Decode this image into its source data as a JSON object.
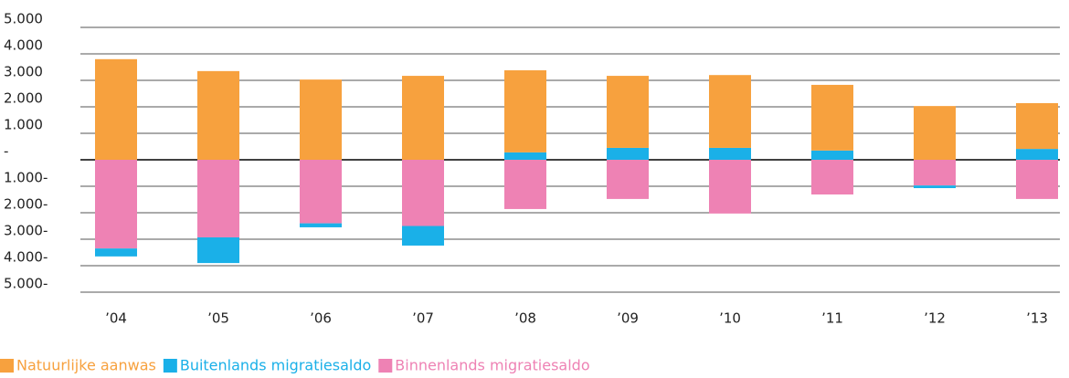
{
  "chart_data": {
    "type": "bar",
    "categories": [
      "’04",
      "’05",
      "’06",
      "’07",
      "’08",
      "’09",
      "’10",
      "’11",
      "’12",
      "’13"
    ],
    "series": [
      {
        "name": "Natuurlijke aanwas",
        "color": "#f7a13e",
        "values": [
          3800,
          3350,
          3030,
          3170,
          3100,
          2720,
          2750,
          2480,
          2030,
          1730
        ]
      },
      {
        "name": "Buitenlands migratiesaldo",
        "color": "#1ab0e8",
        "values": [
          -300,
          -970,
          -150,
          -740,
          280,
          450,
          450,
          350,
          -100,
          410
        ]
      },
      {
        "name": "Binnenlands migratiesaldo",
        "color": "#ee82b4",
        "values": [
          -3350,
          -2930,
          -2400,
          -2500,
          -1860,
          -1480,
          -2030,
          -1310,
          -970,
          -1480
        ]
      }
    ],
    "ylim": [
      -5000,
      5000
    ],
    "yticks": [
      {
        "value": 5000,
        "label": "5.000"
      },
      {
        "value": 4000,
        "label": "4.000"
      },
      {
        "value": 3000,
        "label": "3.000"
      },
      {
        "value": 2000,
        "label": "2.000"
      },
      {
        "value": 1000,
        "label": "1.000"
      },
      {
        "value": 0,
        "label": "-"
      },
      {
        "value": -1000,
        "label": "1.000-"
      },
      {
        "value": -2000,
        "label": "2.000-"
      },
      {
        "value": -3000,
        "label": "3.000-"
      },
      {
        "value": -4000,
        "label": "4.000-"
      },
      {
        "value": -5000,
        "label": "5.000-"
      }
    ],
    "grid": true
  }
}
